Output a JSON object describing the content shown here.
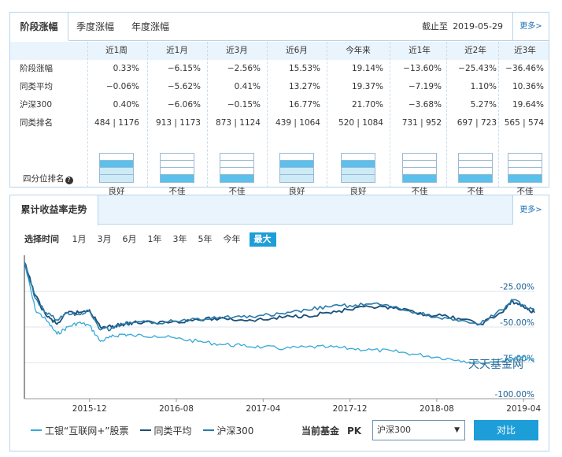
{
  "tabs": {
    "stage": "阶段涨幅",
    "quarter": "季度涨幅",
    "year": "年度涨幅",
    "as_of_label": "截止至",
    "as_of_date": "2019-05-29",
    "more": "更多>"
  },
  "performance": {
    "periods": [
      "近1周",
      "近1月",
      "近3月",
      "近6月",
      "今年来",
      "近1年",
      "近2年",
      "近3年"
    ],
    "rows": [
      {
        "label": "阶段涨幅",
        "values": [
          "0.33%",
          "−6.15%",
          "−2.56%",
          "15.53%",
          "19.14%",
          "−13.60%",
          "−25.43%",
          "−36.46%"
        ]
      },
      {
        "label": "同类平均",
        "values": [
          "−0.06%",
          "−5.62%",
          "0.41%",
          "13.27%",
          "19.37%",
          "−7.19%",
          "1.10%",
          "10.36%"
        ]
      },
      {
        "label": "沪深300",
        "values": [
          "0.40%",
          "−6.06%",
          "−0.15%",
          "16.77%",
          "21.70%",
          "−3.68%",
          "5.27%",
          "19.64%"
        ]
      },
      {
        "label": "同类排名",
        "values": [
          "484 | 1176",
          "913 | 1173",
          "873 | 1124",
          "439 | 1064",
          "520 | 1084",
          "731 | 952",
          "697 | 723",
          "565 | 574"
        ]
      }
    ],
    "quartile_title": "四分位排名",
    "quartile_hint": "?",
    "quartile": [
      {
        "level": 2,
        "label": "良好"
      },
      {
        "level": 4,
        "label": "不佳"
      },
      {
        "level": 4,
        "label": "不佳"
      },
      {
        "level": 2,
        "label": "良好"
      },
      {
        "level": 2,
        "label": "良好"
      },
      {
        "level": 4,
        "label": "不佳"
      },
      {
        "level": 4,
        "label": "不佳"
      },
      {
        "level": 4,
        "label": "不佳"
      }
    ]
  },
  "trend": {
    "title": "累计收益率走势",
    "more": "更多>",
    "range_label": "选择时间",
    "ranges": [
      "1月",
      "3月",
      "6月",
      "1年",
      "3年",
      "5年",
      "今年",
      "最大"
    ],
    "selected_range": "最大",
    "watermark": "天天基金网",
    "legend": [
      {
        "name": "工银“互联网+”股票",
        "color": "#36a9d6"
      },
      {
        "name": "同类平均",
        "color": "#1a4f7a"
      },
      {
        "name": "沪深300",
        "color": "#2a7aa8"
      }
    ],
    "pk_label": "当前基金",
    "pk_word": "PK",
    "compare_select": "沪深300",
    "compare_button": "对比"
  },
  "colors": {
    "accent": "#1e9ed9",
    "border": "#b8d4ea",
    "header_bg": "#eaf4fc",
    "quartile_fill": "#5bc0eb"
  },
  "chart_data": {
    "type": "line",
    "x_ticks": [
      "2015-12",
      "2016-08",
      "2017-04",
      "2017-12",
      "2018-08",
      "2019-04"
    ],
    "y_ticks": [
      "-25.00%",
      "-50.00%",
      "-75.00%",
      "-100.00%"
    ],
    "ylim": [
      -100,
      0
    ],
    "xlim": [
      "2015-06",
      "2019-05"
    ],
    "series": [
      {
        "name": "工银“互联网+”股票",
        "x": [
          "2015-06",
          "2015-07",
          "2015-08",
          "2015-09",
          "2015-10",
          "2015-11",
          "2015-12",
          "2016-01",
          "2016-02",
          "2016-03",
          "2016-04",
          "2016-06",
          "2016-08",
          "2016-10",
          "2016-12",
          "2017-02",
          "2017-04",
          "2017-06",
          "2017-08",
          "2017-10",
          "2017-12",
          "2018-02",
          "2018-04",
          "2018-06",
          "2018-08",
          "2018-10",
          "2018-12",
          "2019-02",
          "2019-03",
          "2019-04",
          "2019-05"
        ],
        "values": [
          -5,
          -38,
          -45,
          -55,
          -50,
          -47,
          -49,
          -60,
          -57,
          -55,
          -56,
          -56,
          -58,
          -60,
          -62,
          -63,
          -64,
          -65,
          -64,
          -64,
          -65,
          -66,
          -67,
          -69,
          -71,
          -73,
          -75,
          -74,
          -72,
          -71,
          -74
        ]
      },
      {
        "name": "同类平均",
        "x": [
          "2015-06",
          "2015-07",
          "2015-08",
          "2015-09",
          "2015-10",
          "2015-11",
          "2015-12",
          "2016-01",
          "2016-02",
          "2016-03",
          "2016-04",
          "2016-06",
          "2016-08",
          "2016-10",
          "2016-12",
          "2017-02",
          "2017-04",
          "2017-06",
          "2017-08",
          "2017-10",
          "2017-12",
          "2018-02",
          "2018-04",
          "2018-06",
          "2018-08",
          "2018-10",
          "2018-12",
          "2019-02",
          "2019-03",
          "2019-04",
          "2019-05"
        ],
        "values": [
          -5,
          -28,
          -42,
          -48,
          -40,
          -40,
          -38,
          -50,
          -50,
          -48,
          -47,
          -47,
          -46,
          -45,
          -44,
          -45,
          -45,
          -43,
          -42,
          -40,
          -38,
          -36,
          -37,
          -40,
          -42,
          -44,
          -48,
          -40,
          -32,
          -36,
          -40
        ]
      },
      {
        "name": "沪深300",
        "x": [
          "2015-06",
          "2015-07",
          "2015-08",
          "2015-09",
          "2015-10",
          "2015-11",
          "2015-12",
          "2016-01",
          "2016-02",
          "2016-03",
          "2016-04",
          "2016-06",
          "2016-08",
          "2016-10",
          "2016-12",
          "2017-02",
          "2017-04",
          "2017-06",
          "2017-08",
          "2017-10",
          "2017-12",
          "2018-02",
          "2018-04",
          "2018-06",
          "2018-08",
          "2018-10",
          "2018-12",
          "2019-02",
          "2019-03",
          "2019-04",
          "2019-05"
        ],
        "values": [
          -5,
          -30,
          -40,
          -45,
          -40,
          -41,
          -39,
          -52,
          -51,
          -48,
          -47,
          -47,
          -46,
          -44,
          -43,
          -43,
          -42,
          -41,
          -38,
          -36,
          -35,
          -34,
          -36,
          -40,
          -43,
          -46,
          -48,
          -38,
          -31,
          -35,
          -38
        ]
      }
    ]
  }
}
